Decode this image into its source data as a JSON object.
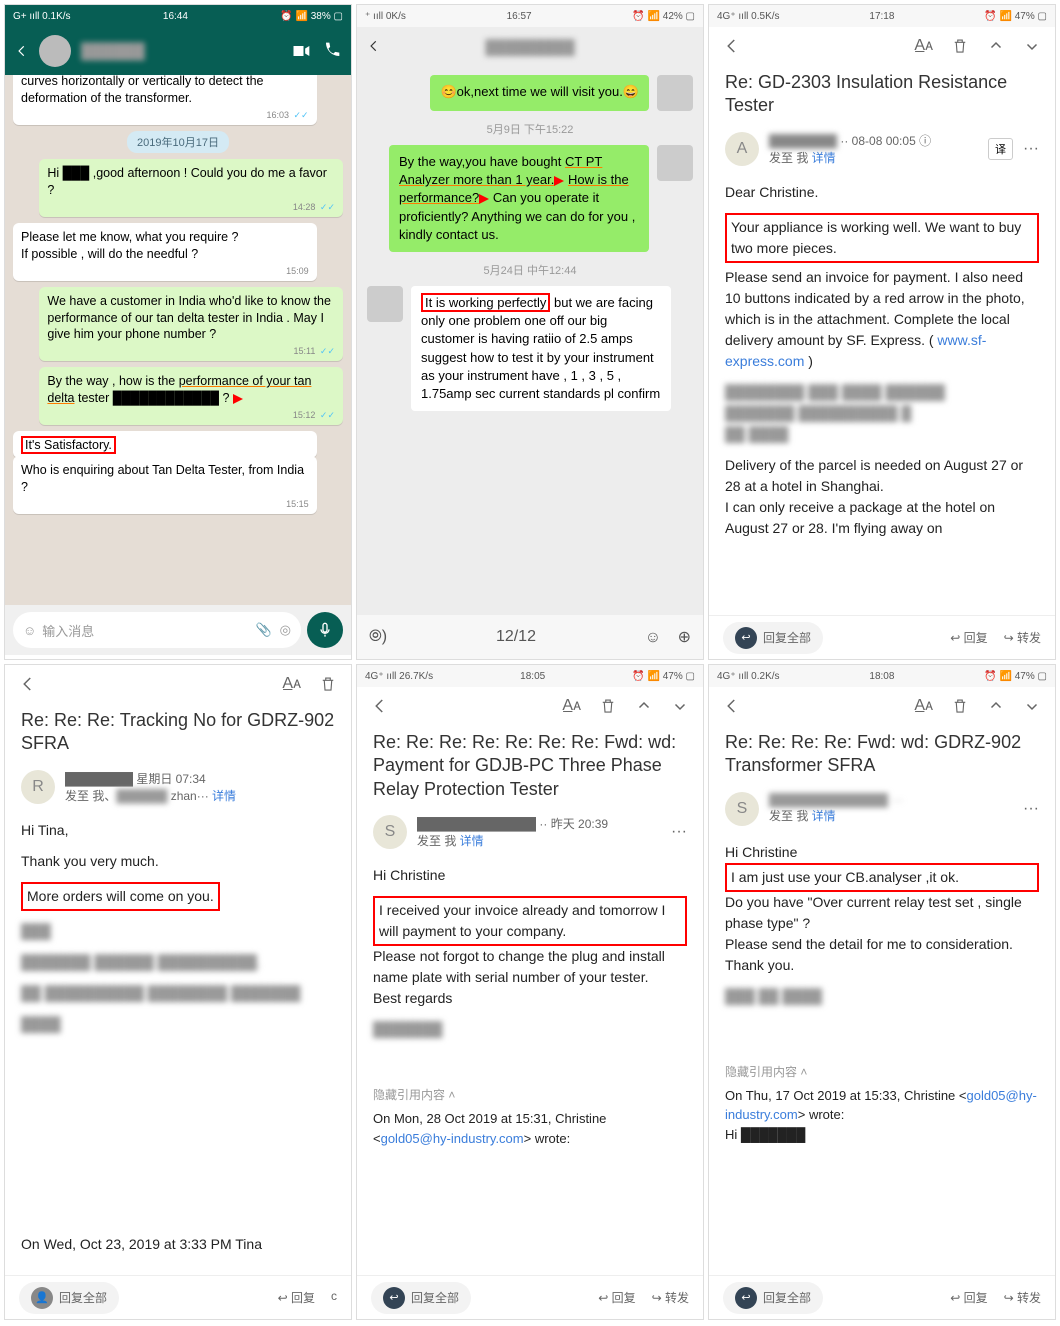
{
  "colors": {
    "whatsapp_header": "#075e54",
    "whatsapp_out_bubble": "#dcf8c6",
    "whatsapp_bg": "#e5ddd5",
    "wechat_out_bubble": "#95ec69",
    "wechat_bg": "#ededed",
    "highlight_red": "#ff0000",
    "link": "#3a7ddb"
  },
  "p1": {
    "status": {
      "net": "G+ ııll 0.1K/s",
      "time": "16:44",
      "batt": "⏰ 📶 38% ▢"
    },
    "contact_name_hidden": "██████",
    "chat": [
      {
        "side": "in",
        "text": "curves horizontally or vertically to detect the deformation of the transformer.",
        "time": "16:03",
        "cut_top": true
      },
      {
        "date_pill": "2019年10月17日"
      },
      {
        "side": "out",
        "text": "Hi ███ ,good afternoon ! Could you do me a favor ?",
        "time": "14:28"
      },
      {
        "side": "in",
        "text": "Please let me know, what you require ?\nIf possible , will do the needful ?",
        "time": "15:09"
      },
      {
        "side": "out",
        "text": "We have a customer in India who'd like to know the performance of our tan delta tester in India . May I give him your phone number ?",
        "time": "15:11"
      },
      {
        "side": "out",
        "text_html": "By the way , how is the <span class='underline-red'>performance of your tan delta</span> tester ████████████ ? <span class='arrow-red'></span>",
        "time": "15:12"
      },
      {
        "side": "in",
        "text_html": "<span class='redbox'>It's Satisfactory.</span>",
        "time": ""
      },
      {
        "side": "in",
        "text": "Who is enquiring about Tan Delta Tester, from India ?",
        "time": "15:15",
        "cut_top_overlap": true
      }
    ],
    "input_placeholder": "输入消息"
  },
  "p2": {
    "status": {
      "net": "⁺ ııll 0K/s",
      "time": "16:57",
      "batt": "⏰ 📶 42% ▢"
    },
    "contact_name_hidden": "█████████",
    "chat": [
      {
        "side": "out",
        "text": "😊ok,next time we will visit you.😄"
      },
      {
        "time_label": "5月9日 下午15:22"
      },
      {
        "side": "out",
        "text_html": "By the way,you have bought <span class='underline-red'>CT PT Analyzer more than 1 year.</span><span class='arrow-red'></span> <span class='underline-red'>How is the performance?</span><span class='arrow-red'></span> Can you operate it proficiently? Anything we can do for you , kindly contact us."
      },
      {
        "time_label": "5月24日 中午12:44"
      },
      {
        "side": "in",
        "text_html": "<span class='redbox'>It is working perfectly</span> but we are facing only one problem one off our big customer is having ratiio of 2.5 amps suggest how to test it by your instrument as your instrument have , 1 , 3 , 5 , 1.75amp sec current standards pl confirm"
      }
    ],
    "page_counter": "12/12"
  },
  "p3": {
    "status": {
      "net": "4G⁺ ııll 0.5K/s",
      "time": "17:18",
      "batt": "⏰ 📶 47% ▢"
    },
    "subject": "Re: GD-2303 Insulation Resistance Tester",
    "from_initial": "A",
    "from_date": "·· 08-08 00:05 ⓘ",
    "from_line2": "发至 我 详情",
    "translate": "译",
    "body": {
      "greeting": "Dear  Christine.",
      "highlight": "Your appliance is working well. We want to buy two more pieces.",
      "para1": "Please send an invoice for payment. I also need 10 buttons indicated by a red arrow in the photo, which is in the attachment. Complete the local delivery amount by SF. Express.  ( ",
      "link": "www.sf-express.com",
      "para1_end": " )",
      "blurred_block": "████████ ███ ████ ██████\n███████ ██████████ █\n██ ████",
      "para2": "Delivery of the parcel is needed on August 27 or 28 at a hotel in Shanghai.\nI can only receive a package at the hotel on August 27 or 28. I'm flying away on"
    },
    "actions": {
      "reply_all": "回复全部",
      "reply": "回复",
      "forward": "转发"
    }
  },
  "p4": {
    "subject": "Re: Re: Re: Tracking No for GDRZ-902 SFRA",
    "from_initial": "R",
    "from_date": "████████ 星期日 07:34",
    "from_line2": "发至 我、██████ zhan··· 详情",
    "body": {
      "greeting": "Hi Tina,",
      "line1": "Thank you very much.",
      "highlight": "More orders will come on you.",
      "blurred1": "███",
      "blurred2": "███████ ██████ ██████████.",
      "blurred3": "██ ██████████ ████████ ███████",
      "blurred4": "████",
      "footer": "On Wed, Oct 23, 2019 at 3:33 PM Tina"
    },
    "actions": {
      "reply_all": "回复全部",
      "reply": "回复"
    }
  },
  "p5": {
    "status": {
      "net": "4G⁺ ııll 26.7K/s",
      "time": "18:05",
      "batt": "⏰ 📶 47% ▢"
    },
    "subject": "Re: Re: Re: Re: Re: Re: Re: Fwd: wd: Payment for GDJB-PC Three Phase Relay Protection Tester",
    "from_initial": "S",
    "from_date": "██████████████ ·· 昨天 20:39",
    "from_line2": "发至 我 详情",
    "body": {
      "greeting": "Hi Christine",
      "highlight": "I received your invoice already and tomorrow I will payment to your company.",
      "para1": "Please not forgot to change the plug and install name plate with serial number of your tester.\nBest regards",
      "blurred": "███████",
      "quote_toggle": "隐藏引用内容 ˄",
      "footer": "On Mon, 28 Oct 2019 at 15:31, Christine <",
      "footer_link": "gold05@hy-industry.com",
      "footer_end": "> wrote:"
    },
    "actions": {
      "reply_all": "回复全部",
      "reply": "回复",
      "forward": "转发"
    }
  },
  "p6": {
    "status": {
      "net": "4G⁺ ııll 0.2K/s",
      "time": "18:08",
      "batt": "⏰ 📶 47% ▢"
    },
    "subject": "Re: Re: Re: Re: Fwd: wd: GDRZ-902 Transformer SFRA",
    "from_initial": "S",
    "from_date": "██████████████ ···",
    "from_line2": "发至 我 详情",
    "body": {
      "greeting": "Hi Christine",
      "highlight": "I am just use your CB.analyser ,it ok.",
      "para1": "Do you have \"Over current relay test set , single phase type\" ?\nPlease send the detail for me to consideration.\nThank you.",
      "blurred": "███ ██ ████",
      "quote_toggle": "隐藏引用内容 ˄",
      "footer": "On Thu, 17 Oct 2019 at 15:33, Christine <",
      "footer_link": "gold05@hy-industry.com",
      "footer_end": "> wrote:\nHi ███████"
    },
    "actions": {
      "reply_all": "回复全部",
      "reply": "回复",
      "forward": "转发"
    }
  }
}
